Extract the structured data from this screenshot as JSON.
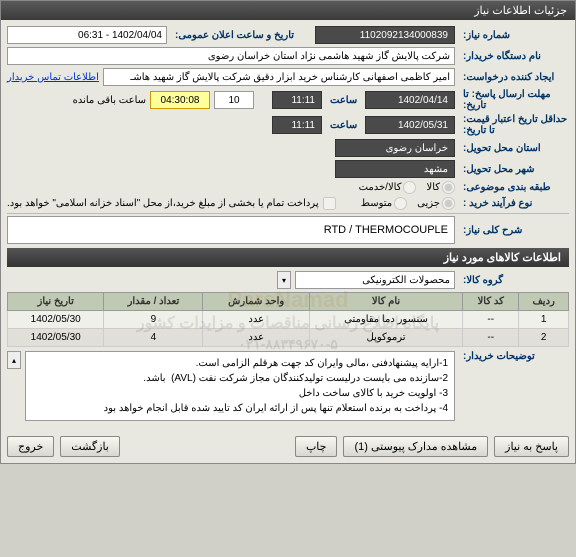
{
  "titlebar": "جزئیات اطلاعات نیاز",
  "fields": {
    "need_no_label": "شماره نیاز:",
    "need_no": "1102092134000839",
    "public_announce_label": "تاریخ و ساعت اعلان عمومی:",
    "public_announce": "1402/04/04 - 06:31",
    "device_name_label": "نام دستگاه خریدار:",
    "device_name": "شرکت پالایش گاز شهید هاشمی نژاد   استان خراسان رضوی",
    "creator_label": "ایجاد کننده درخواست:",
    "creator": "امیر کاظمی اصفهانی کارشناس خرید ابزار دقیق شرکت پالایش گاز شهید هاشـ",
    "buyer_contact_link": "اطلاعات تماس خریدار",
    "deadline_label": "مهلت ارسال پاسخ: تا تاریخ:",
    "deadline_date": "1402/04/14",
    "time_label": "ساعت",
    "deadline_time": "11:11",
    "countdown_num": "10",
    "countdown_time": "04:30:08",
    "countdown_suffix": "ساعت باقی مانده",
    "validity_label": "حداقل تاریخ اعتبار قیمت: تا تاریخ:",
    "validity_date": "1402/05/31",
    "validity_time": "11:11",
    "province_label": "استان محل تحویل:",
    "province": "خراسان رضوی",
    "city_label": "شهر محل تحویل:",
    "city": "مشهد",
    "subject_class_label": "طبقه بندی موضوعی:",
    "radio_goods": "کالا",
    "radio_service": "کالا/خدمت",
    "purchase_type_label": "نوع فرآیند خرید :",
    "radio_small": "جزیی",
    "radio_medium": "متوسط",
    "payment_check": "پرداخت تمام یا بخشی از مبلغ خرید،از محل \"اسناد خزانه اسلامی\" خواهد بود.",
    "need_desc_label": "شرح کلی نیاز:",
    "need_desc": "RTD / THERMOCOUPLE",
    "goods_section": "اطلاعات کالاهای مورد نیاز",
    "goods_group_label": "گروه کالا:",
    "goods_group": "محصولات الکترونیکی",
    "buyer_notes_label": "توضیحات خریدار:",
    "notes": [
      "1-ارایه پیشنهادفنی ،مالی وایران کد جهت هرقلم الزامی است.",
      "2-سازنده می بایست درلیست تولیدکنندگان مجاز شرکت نفت (AVL)  باشد.",
      "3- اولویت خرید با کالای ساخت داخل",
      "4- پرداخت به برنده استعلام تنها پس از ارائه ایران کد تایید شده قابل انجام خواهد بود"
    ]
  },
  "table": {
    "headers": [
      "ردیف",
      "کد کالا",
      "نام کالا",
      "واحد شمارش",
      "تعداد / مقدار",
      "تاریخ نیاز"
    ],
    "rows": [
      [
        "1",
        "--",
        "سنسور دما مقاومتی",
        "عدد",
        "9",
        "1402/05/30"
      ],
      [
        "2",
        "--",
        "ترموکوپل",
        "عدد",
        "4",
        "1402/05/30"
      ]
    ]
  },
  "watermark": {
    "line1": "ParsNamad",
    "line2": "پایگاه اطلاع رسانی مناقصات و مزایدات کشور",
    "line3": "۰۲۱-۸۸۳۴۹۶۷۰-۵"
  },
  "buttons": {
    "reply": "پاسخ به نیاز",
    "attachments": "مشاهده مدارک پیوستی (1)",
    "print": "چاپ",
    "back": "بازگشت",
    "exit": "خروج"
  }
}
